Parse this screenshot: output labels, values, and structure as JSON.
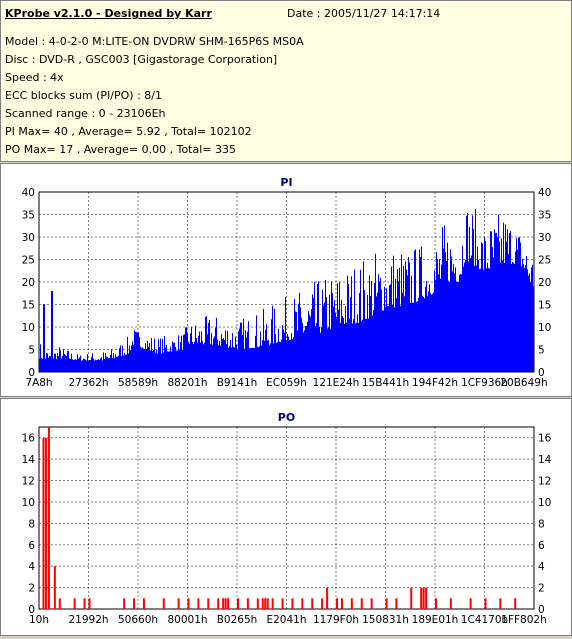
{
  "header": {
    "title": "KProbe v2.1.0 - Designed by Karr",
    "date": "Date : 2005/11/27 14:17:14",
    "lines": [
      "Model : 4-0-2-0 M:LITE-ON DVDRW SHM-165P6S MS0A",
      "Disc : DVD-R , GSC003 [Gigastorage Corporation]",
      "Speed : 4x",
      "ECC blocks sum (PI/PO) : 8/1",
      "Scanned range : 0 - 23106Eh",
      "PI Max= 40 , Average= 5.92 , Total= 102102",
      "PO Max= 17 , Average= 0.00 , Total= 335"
    ]
  },
  "colors": {
    "pi": "#0000ff",
    "po": "#ff0000",
    "axis_title": "#000080"
  },
  "chart_data": [
    {
      "type": "area",
      "title": "PI",
      "ylim": [
        0,
        40
      ],
      "yticks": [
        0,
        5,
        10,
        15,
        20,
        25,
        30,
        35,
        40
      ],
      "xtick_labels": [
        "7A8h",
        "27362h",
        "58589h",
        "88201h",
        "B9141h",
        "EC059h",
        "121E24h",
        "15B441h",
        "194F42h",
        "1CF936h",
        "20B649h"
      ],
      "grid": "dashed",
      "x_fraction": [
        0,
        0.02,
        0.04,
        0.08,
        0.14,
        0.18,
        0.19,
        0.24,
        0.29,
        0.3,
        0.35,
        0.4,
        0.45,
        0.5,
        0.55,
        0.6,
        0.65,
        0.7,
        0.75,
        0.79,
        0.82,
        0.85,
        0.86,
        0.9,
        0.94,
        0.97,
        1.0
      ],
      "base_values": [
        3,
        2.5,
        3,
        2.5,
        2.5,
        4,
        6,
        4,
        5,
        6,
        6,
        5,
        5.5,
        7,
        8,
        10,
        11,
        14,
        15,
        17,
        20,
        20,
        25,
        22,
        24,
        24,
        18
      ],
      "peak_values": [
        7,
        5,
        6,
        4,
        5,
        8,
        10,
        8,
        9,
        11,
        13,
        12,
        14,
        17,
        20,
        23,
        26,
        29,
        28,
        30,
        34,
        36,
        40,
        33,
        37,
        32,
        27
      ],
      "spikes": [
        {
          "x_fraction": 0.025,
          "value": 18
        },
        {
          "x_fraction": 0.01,
          "value": 15
        }
      ]
    },
    {
      "type": "bar",
      "title": "PO",
      "ylim": [
        0,
        17
      ],
      "yticks": [
        0,
        2,
        4,
        6,
        8,
        10,
        12,
        14,
        16
      ],
      "xtick_labels": [
        "10h",
        "21992h",
        "50660h",
        "80001h",
        "B0265h",
        "E2041h",
        "1179F0h",
        "150831h",
        "189E01h",
        "1C4170h",
        "1FF802h"
      ],
      "grid": "dashed",
      "bars": [
        {
          "x_fraction": 0.007,
          "value": 16
        },
        {
          "x_fraction": 0.012,
          "value": 16
        },
        {
          "x_fraction": 0.018,
          "value": 17
        },
        {
          "x_fraction": 0.03,
          "value": 4
        },
        {
          "x_fraction": 0.04,
          "value": 1
        },
        {
          "x_fraction": 0.07,
          "value": 1
        },
        {
          "x_fraction": 0.09,
          "value": 1
        },
        {
          "x_fraction": 0.1,
          "value": 1
        },
        {
          "x_fraction": 0.17,
          "value": 1
        },
        {
          "x_fraction": 0.19,
          "value": 1
        },
        {
          "x_fraction": 0.21,
          "value": 1
        },
        {
          "x_fraction": 0.25,
          "value": 1
        },
        {
          "x_fraction": 0.28,
          "value": 1
        },
        {
          "x_fraction": 0.3,
          "value": 1
        },
        {
          "x_fraction": 0.32,
          "value": 1
        },
        {
          "x_fraction": 0.34,
          "value": 1
        },
        {
          "x_fraction": 0.36,
          "value": 1
        },
        {
          "x_fraction": 0.37,
          "value": 1
        },
        {
          "x_fraction": 0.375,
          "value": 1
        },
        {
          "x_fraction": 0.38,
          "value": 1
        },
        {
          "x_fraction": 0.4,
          "value": 1
        },
        {
          "x_fraction": 0.42,
          "value": 1
        },
        {
          "x_fraction": 0.44,
          "value": 1
        },
        {
          "x_fraction": 0.45,
          "value": 1
        },
        {
          "x_fraction": 0.455,
          "value": 1
        },
        {
          "x_fraction": 0.46,
          "value": 1
        },
        {
          "x_fraction": 0.47,
          "value": 1
        },
        {
          "x_fraction": 0.49,
          "value": 1
        },
        {
          "x_fraction": 0.51,
          "value": 1
        },
        {
          "x_fraction": 0.53,
          "value": 1
        },
        {
          "x_fraction": 0.55,
          "value": 1
        },
        {
          "x_fraction": 0.57,
          "value": 1
        },
        {
          "x_fraction": 0.58,
          "value": 2
        },
        {
          "x_fraction": 0.6,
          "value": 1
        },
        {
          "x_fraction": 0.61,
          "value": 1
        },
        {
          "x_fraction": 0.63,
          "value": 1
        },
        {
          "x_fraction": 0.65,
          "value": 1
        },
        {
          "x_fraction": 0.67,
          "value": 1
        },
        {
          "x_fraction": 0.7,
          "value": 1
        },
        {
          "x_fraction": 0.72,
          "value": 1
        },
        {
          "x_fraction": 0.75,
          "value": 2
        },
        {
          "x_fraction": 0.77,
          "value": 2
        },
        {
          "x_fraction": 0.775,
          "value": 2
        },
        {
          "x_fraction": 0.78,
          "value": 2
        },
        {
          "x_fraction": 0.8,
          "value": 1
        },
        {
          "x_fraction": 0.83,
          "value": 1
        },
        {
          "x_fraction": 0.87,
          "value": 1
        },
        {
          "x_fraction": 0.9,
          "value": 1
        },
        {
          "x_fraction": 0.93,
          "value": 1
        },
        {
          "x_fraction": 0.96,
          "value": 1
        }
      ]
    }
  ]
}
